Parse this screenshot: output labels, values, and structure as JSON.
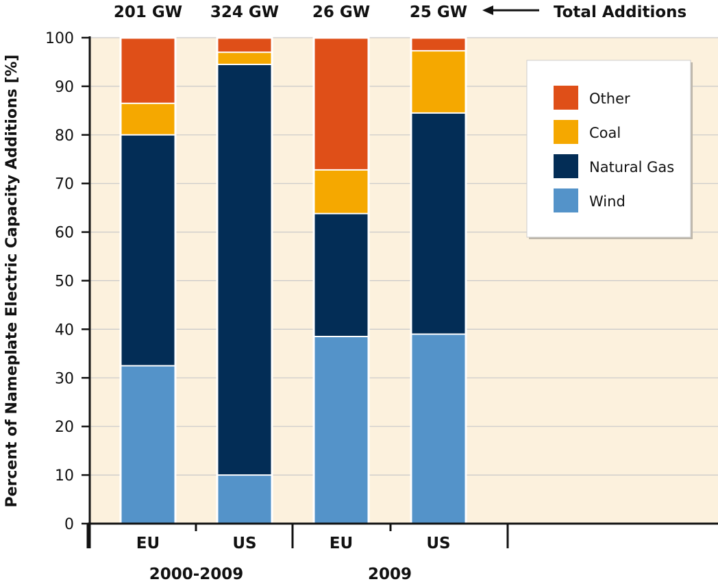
{
  "chart_data": {
    "type": "bar",
    "stacked": true,
    "ylabel": "Percent of Nameplate Electric Capacity Additions [%]",
    "ylim": [
      0,
      100
    ],
    "yticks": [
      0,
      10,
      20,
      30,
      40,
      50,
      60,
      70,
      80,
      90,
      100
    ],
    "grid": true,
    "categories": [
      "EU",
      "US",
      "EU",
      "US"
    ],
    "groups": [
      {
        "label": "2000-2009",
        "categories": [
          0,
          1
        ]
      },
      {
        "label": "2009",
        "categories": [
          2,
          3
        ]
      }
    ],
    "totals": [
      "201 GW",
      "324 GW",
      "26 GW",
      "25 GW"
    ],
    "totals_annotation": "Total Additions",
    "legend_position": "top-right",
    "series": [
      {
        "name": "Wind",
        "color": "#5493c9",
        "values": [
          32.5,
          10,
          38.5,
          39
        ]
      },
      {
        "name": "Natural Gas",
        "color": "#032d56",
        "values": [
          47.5,
          84.5,
          25.3,
          45.5
        ]
      },
      {
        "name": "Coal",
        "color": "#f5a800",
        "values": [
          6.5,
          2.5,
          9,
          12.8
        ]
      },
      {
        "name": "Other",
        "color": "#df4f18",
        "values": [
          13.5,
          3,
          27.2,
          2.7
        ]
      }
    ],
    "legend_order": [
      "Other",
      "Coal",
      "Natural Gas",
      "Wind"
    ],
    "colors": {
      "plot_background": "#fcf1dd",
      "grid": "#c8c8c8",
      "axis": "#111111"
    }
  }
}
